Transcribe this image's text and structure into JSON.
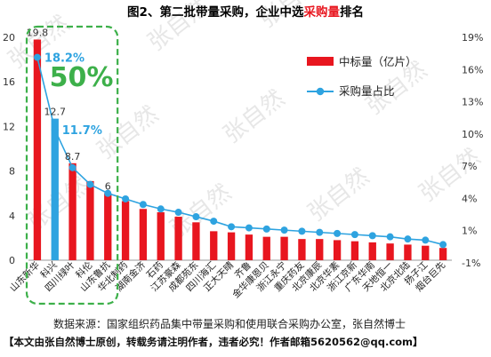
{
  "chart_data": {
    "type": "bar",
    "title": {
      "prefix": "图2、第二批带量采购，企业中选",
      "highlight": "采购量",
      "suffix": "排名"
    },
    "categories": [
      "山东新华",
      "科兴",
      "四川绿叶",
      "科伦",
      "山东鲁抗",
      "华北制药",
      "湖南金济",
      "石药",
      "江苏豪森",
      "成都苑东",
      "四川海汇",
      "正大天晴",
      "齐鲁",
      "金华康恩贝",
      "浙江永宁",
      "重庆药友",
      "北京康辰",
      "北京华素",
      "浙江京新",
      "广东华南",
      "天地恒一",
      "北京北陆",
      "扬子江",
      "烟台巨先"
    ],
    "y_left": {
      "min": 0,
      "max": 20,
      "ticks": [
        "0",
        "4",
        "8",
        "12",
        "16",
        "20"
      ]
    },
    "y_right": {
      "min": 0,
      "max": 20,
      "ticks": [
        "-1%",
        "1%",
        "4%",
        "7%",
        "10%",
        "13%",
        "16%",
        "19%"
      ]
    },
    "legend": {
      "position": "right",
      "bar_label": "中标量（亿片）",
      "line_label": "采购量占比"
    },
    "series": [
      {
        "name": "中标量（亿片）",
        "kind": "bar",
        "values": [
          19.8,
          12.7,
          8.7,
          7.1,
          6.0,
          5.3,
          4.6,
          4.3,
          3.9,
          3.4,
          2.6,
          2.5,
          2.3,
          2.1,
          2.1,
          1.9,
          1.9,
          1.8,
          1.7,
          1.6,
          1.5,
          1.4,
          1.3,
          1.1
        ],
        "colors": [
          "#e8161f",
          "#2ea3e0",
          "#e8161f",
          "#e8161f",
          "#e8161f",
          "#e8161f",
          "#e8161f",
          "#e8161f",
          "#e8161f",
          "#e8161f",
          "#e8161f",
          "#e8161f",
          "#e8161f",
          "#e8161f",
          "#e8161f",
          "#e8161f",
          "#e8161f",
          "#e8161f",
          "#e8161f",
          "#e8161f",
          "#e8161f",
          "#e8161f",
          "#e8161f",
          "#e8161f"
        ]
      },
      {
        "name": "采购量占比",
        "kind": "line",
        "values": [
          18.2,
          11.7,
          8.3,
          6.8,
          6.0,
          5.5,
          5.0,
          4.6,
          4.3,
          3.9,
          3.5,
          3.0,
          2.9,
          2.8,
          2.7,
          2.6,
          2.5,
          2.4,
          2.3,
          2.2,
          2.1,
          1.9,
          1.8,
          1.4
        ]
      }
    ],
    "data_labels": [
      {
        "index": 0,
        "text": "19.8"
      },
      {
        "index": 1,
        "text": "12.7"
      },
      {
        "index": 2,
        "text": "8.7"
      },
      {
        "index": 4,
        "text": "6"
      }
    ],
    "pct_labels": [
      {
        "index": 0,
        "text": "18.2%"
      },
      {
        "index": 1,
        "text": "11.7%"
      }
    ],
    "highlight_box_label": "50%",
    "watermark": "张自然",
    "colors": {
      "bar": "#e8161f",
      "bar_highlight": "#2ea3e0",
      "line": "#2ea3e0",
      "box": "#3db04a",
      "title_highlight": "#e8161f",
      "axis": "#333333"
    }
  },
  "footer": {
    "source": "数据来源：国家组织药品集中带量采购和使用联合采购办公室，张自然博士",
    "note": "【本文由张自然博士原创，转载务请注明作者，违者必究！作者邮箱5620562@qq.com】"
  }
}
